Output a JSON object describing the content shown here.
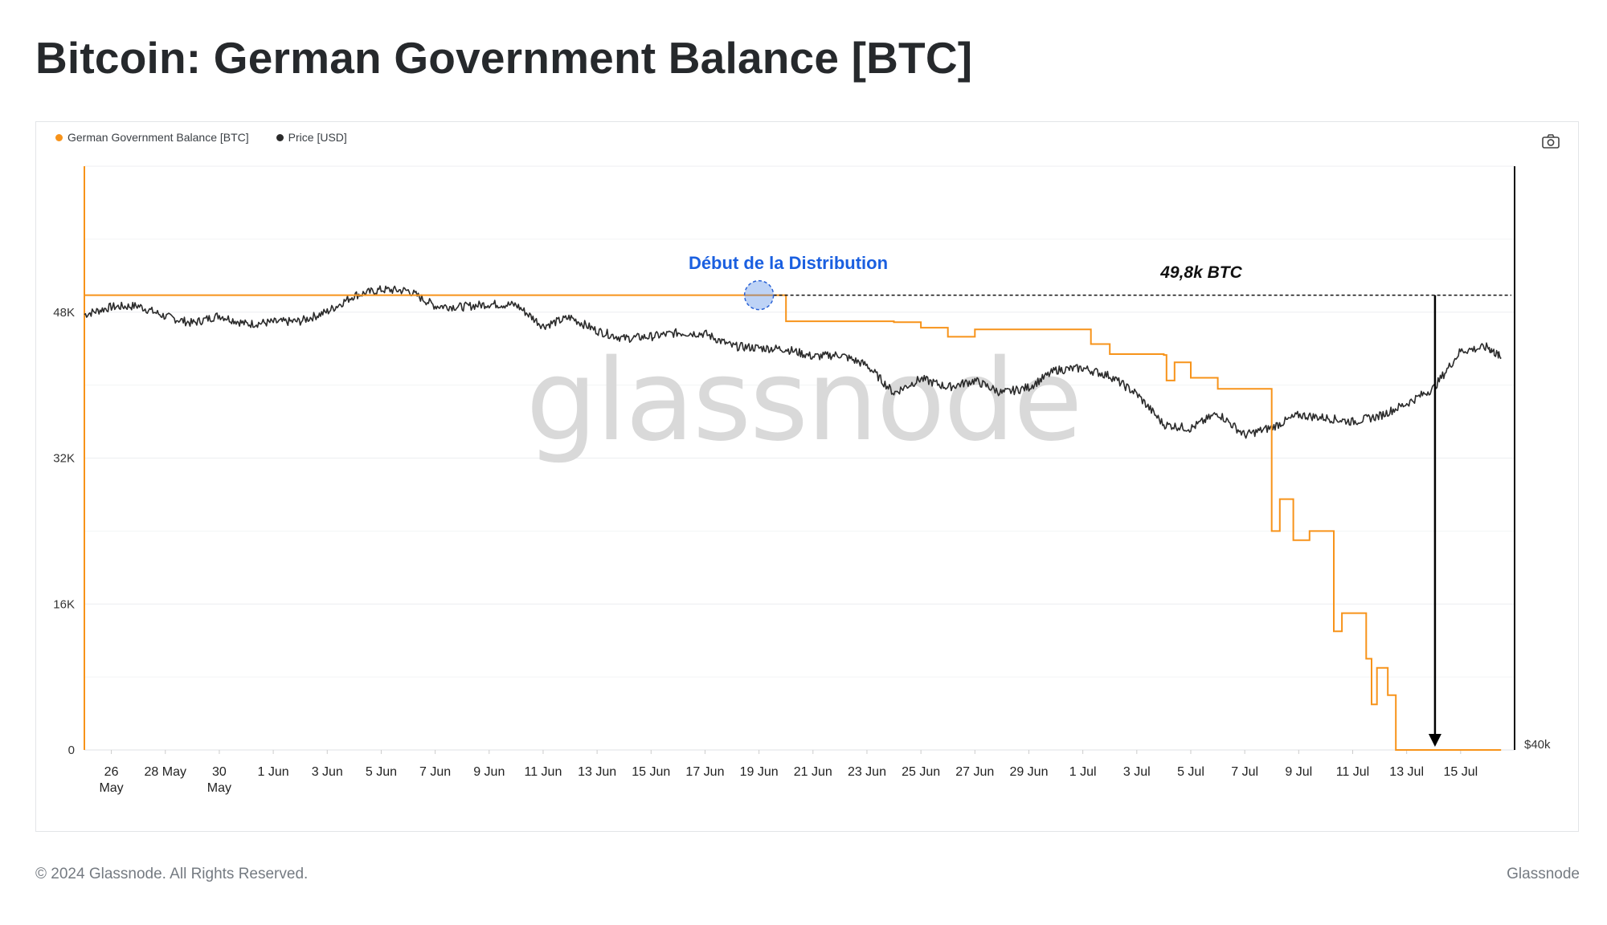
{
  "page": {
    "title": "Bitcoin: German Government Balance [BTC]",
    "watermark": "glassnode",
    "camera_icon": "camera-icon"
  },
  "legend": [
    {
      "label": "German Government Balance [BTC]",
      "color": "#f7931a"
    },
    {
      "label": "Price [USD]",
      "color": "#2b2b2b"
    }
  ],
  "annotations": {
    "distribution_start": "Début de la Distribution",
    "amount": "49,8k BTC"
  },
  "footer": {
    "copyright": "© 2024 Glassnode. All Rights Reserved.",
    "brand": "Glassnode"
  },
  "chart_data": {
    "type": "line",
    "title": "Bitcoin: German Government Balance [BTC]",
    "x_labels": [
      "26\nMay",
      "28 May",
      "30\nMay",
      "1 Jun",
      "3 Jun",
      "5 Jun",
      "7 Jun",
      "9 Jun",
      "11 Jun",
      "13 Jun",
      "15 Jun",
      "17 Jun",
      "19 Jun",
      "21 Jun",
      "23 Jun",
      "25 Jun",
      "27 Jun",
      "29 Jun",
      "1 Jul",
      "3 Jul",
      "5 Jul",
      "7 Jul",
      "9 Jul",
      "11 Jul",
      "13 Jul",
      "15 Jul"
    ],
    "x_range": [
      "2024-05-25",
      "2024-07-17"
    ],
    "y_left": {
      "ticks": [
        "0",
        "16K",
        "32K",
        "48K"
      ],
      "tick_values": [
        0,
        16000,
        32000,
        48000
      ],
      "range": [
        0,
        64000
      ]
    },
    "y_right": {
      "ticks": [
        "$40k"
      ]
    },
    "series": [
      {
        "name": "German Government Balance [BTC]",
        "color": "#f7931a",
        "step": true,
        "points": [
          [
            "2024-05-25",
            49858
          ],
          [
            "2024-06-19",
            49858
          ],
          [
            "2024-06-20",
            47000
          ],
          [
            "2024-06-24",
            46900
          ],
          [
            "2024-06-25",
            46300
          ],
          [
            "2024-06-26",
            45300
          ],
          [
            "2024-06-27",
            46100
          ],
          [
            "2024-07-01",
            46100
          ],
          [
            "2024-07-01.3",
            44500
          ],
          [
            "2024-07-02",
            43400
          ],
          [
            "2024-07-04",
            43300
          ],
          [
            "2024-07-04.1",
            40500
          ],
          [
            "2024-07-04.4",
            42500
          ],
          [
            "2024-07-05",
            40800
          ],
          [
            "2024-07-06",
            39600
          ],
          [
            "2024-07-07.5",
            39600
          ],
          [
            "2024-07-08",
            24000
          ],
          [
            "2024-07-08.3",
            27500
          ],
          [
            "2024-07-08.8",
            23000
          ],
          [
            "2024-07-09.2",
            23000
          ],
          [
            "2024-07-09.4",
            24000
          ],
          [
            "2024-07-10",
            24000
          ],
          [
            "2024-07-10.3",
            13000
          ],
          [
            "2024-07-10.6",
            15000
          ],
          [
            "2024-07-11",
            15000
          ],
          [
            "2024-07-11.5",
            10000
          ],
          [
            "2024-07-11.7",
            5000
          ],
          [
            "2024-07-11.9",
            9000
          ],
          [
            "2024-07-12.2",
            9000
          ],
          [
            "2024-07-12.3",
            6000
          ],
          [
            "2024-07-12.6",
            0
          ],
          [
            "2024-07-16.5",
            0
          ]
        ]
      },
      {
        "name": "Price [USD]",
        "color": "#2b2b2b",
        "points": [
          [
            "2024-05-25",
            68500
          ],
          [
            "2024-05-26",
            69300
          ],
          [
            "2024-05-27",
            69400
          ],
          [
            "2024-05-28",
            68300
          ],
          [
            "2024-05-29",
            67600
          ],
          [
            "2024-05-30",
            68400
          ],
          [
            "2024-05-31",
            67500
          ],
          [
            "2024-06-01",
            67700
          ],
          [
            "2024-06-02",
            67800
          ],
          [
            "2024-06-03",
            68800
          ],
          [
            "2024-06-04",
            70500
          ],
          [
            "2024-06-05",
            71100
          ],
          [
            "2024-06-06",
            71000
          ],
          [
            "2024-06-07",
            69400
          ],
          [
            "2024-06-08",
            69300
          ],
          [
            "2024-06-09",
            69600
          ],
          [
            "2024-06-10",
            69500
          ],
          [
            "2024-06-11",
            67300
          ],
          [
            "2024-06-12",
            68200
          ],
          [
            "2024-06-13",
            66800
          ],
          [
            "2024-06-14",
            66000
          ],
          [
            "2024-06-15",
            66200
          ],
          [
            "2024-06-16",
            66600
          ],
          [
            "2024-06-17",
            66500
          ],
          [
            "2024-06-18",
            65200
          ],
          [
            "2024-06-19",
            65000
          ],
          [
            "2024-06-20",
            64900
          ],
          [
            "2024-06-21",
            64100
          ],
          [
            "2024-06-22",
            64300
          ],
          [
            "2024-06-23",
            63200
          ],
          [
            "2024-06-24",
            60300
          ],
          [
            "2024-06-25",
            61800
          ],
          [
            "2024-06-26",
            60900
          ],
          [
            "2024-06-27",
            61600
          ],
          [
            "2024-06-28",
            60300
          ],
          [
            "2024-06-29",
            60900
          ],
          [
            "2024-06-30",
            62700
          ],
          [
            "2024-07-01",
            62900
          ],
          [
            "2024-07-02",
            62100
          ],
          [
            "2024-07-03",
            60200
          ],
          [
            "2024-07-04",
            57000
          ],
          [
            "2024-07-05",
            56600
          ],
          [
            "2024-07-06",
            58200
          ],
          [
            "2024-07-07",
            55900
          ],
          [
            "2024-07-08",
            56700
          ],
          [
            "2024-07-09",
            58000
          ],
          [
            "2024-07-10",
            57700
          ],
          [
            "2024-07-11",
            57300
          ],
          [
            "2024-07-12",
            57900
          ],
          [
            "2024-07-13",
            59200
          ],
          [
            "2024-07-14",
            60800
          ],
          [
            "2024-07-15",
            64700
          ],
          [
            "2024-07-16",
            65100
          ],
          [
            "2024-07-16.5",
            64000
          ]
        ]
      }
    ]
  }
}
